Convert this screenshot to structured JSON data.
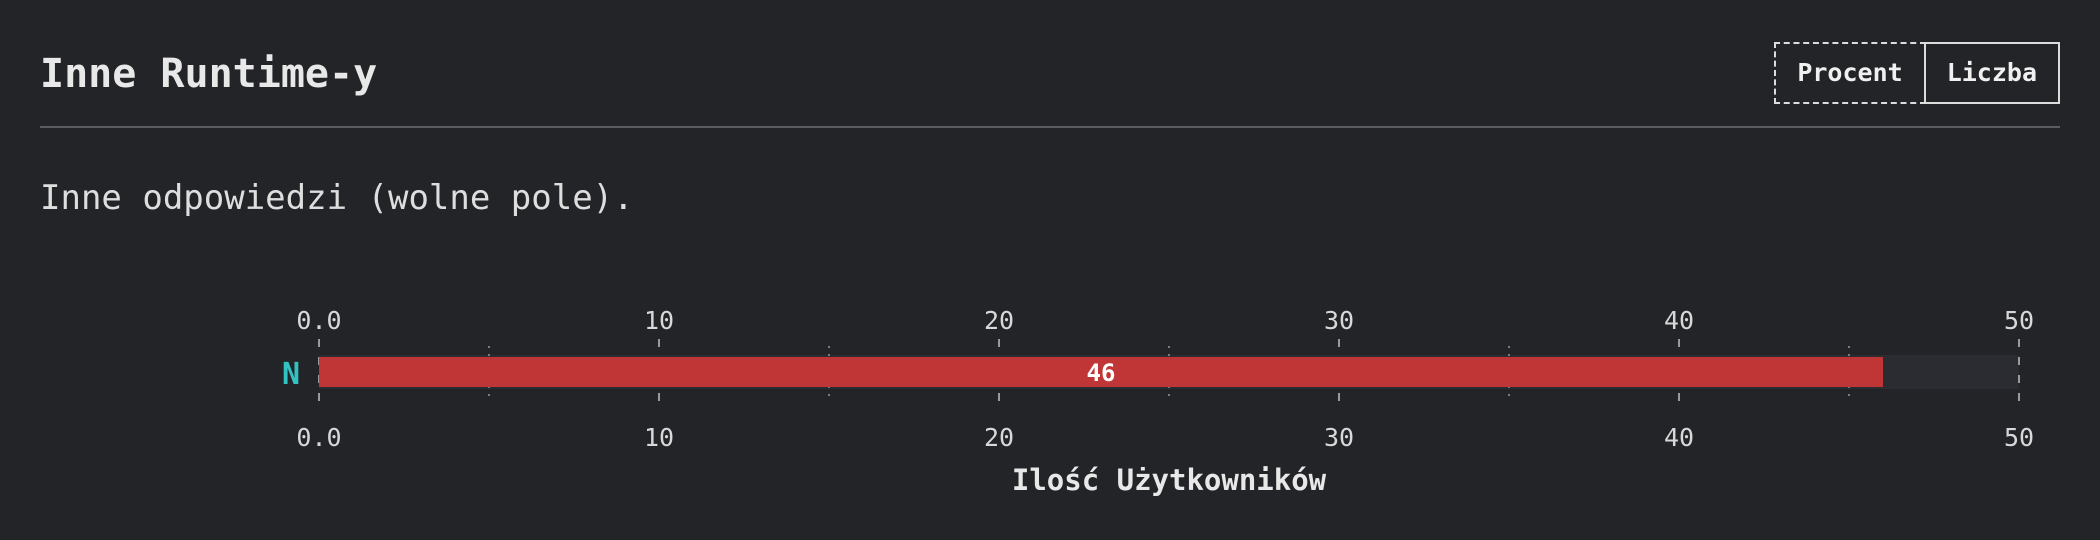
{
  "header": {
    "title": "Inne Runtime-y",
    "toggle": {
      "percent_label": "Procent",
      "count_label": "Liczba"
    }
  },
  "description": "Inne odpowiedzi (wolne pole).",
  "colors": {
    "background": "#232428",
    "bar": "#c03636",
    "bar_track": "#2b2c31",
    "category_label": "#33c2c2",
    "text": "#e6e6e6"
  },
  "chart_data": {
    "type": "bar",
    "orientation": "horizontal",
    "categories": [
      "N"
    ],
    "values": [
      46
    ],
    "data_labels": [
      "46"
    ],
    "title": "",
    "xlabel": "Ilość Użytkowników",
    "ylabel": "",
    "xlim": [
      0,
      50
    ],
    "x_ticks": [
      "0.0",
      "10",
      "20",
      "30",
      "40",
      "50"
    ],
    "x_tick_values": [
      0,
      10,
      20,
      30,
      40,
      50
    ],
    "minor_tick_values": [
      5,
      15,
      25,
      35,
      45
    ],
    "grid": true,
    "axes_labels_position": "top-and-bottom",
    "legend": "none"
  }
}
